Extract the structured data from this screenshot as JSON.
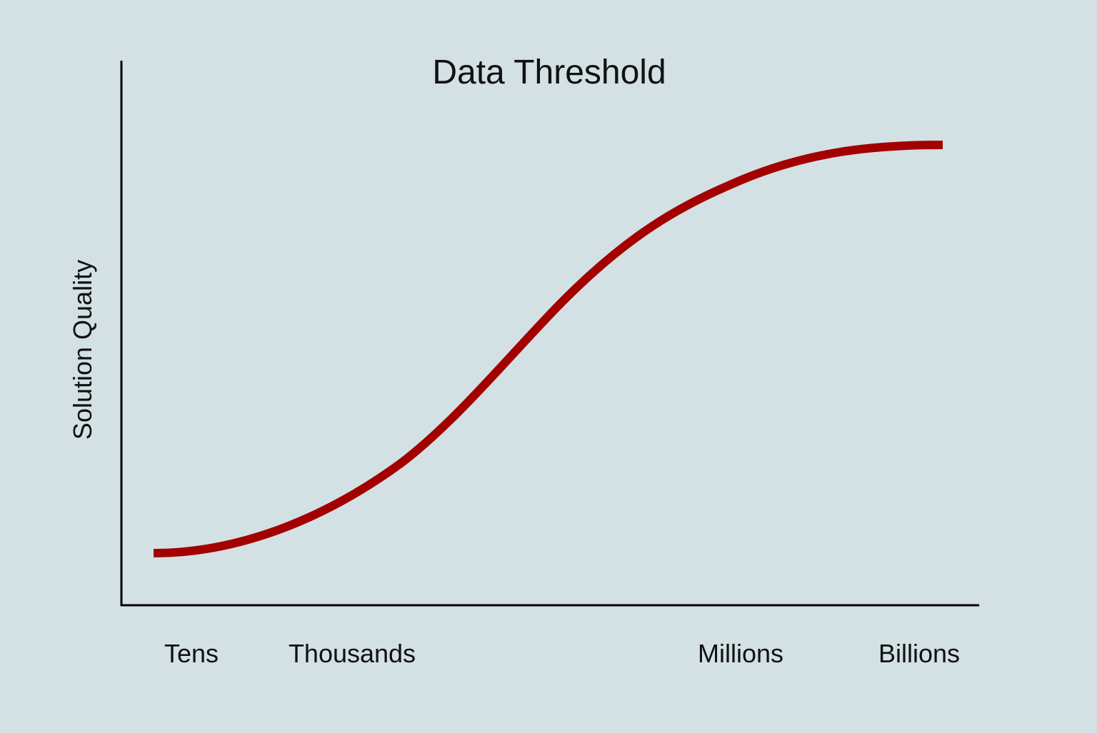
{
  "title": "Data Threshold",
  "y_axis_label": "Solution Quality",
  "x_labels": [
    "Tens",
    "Thousands",
    "Millions",
    "Billions"
  ]
}
